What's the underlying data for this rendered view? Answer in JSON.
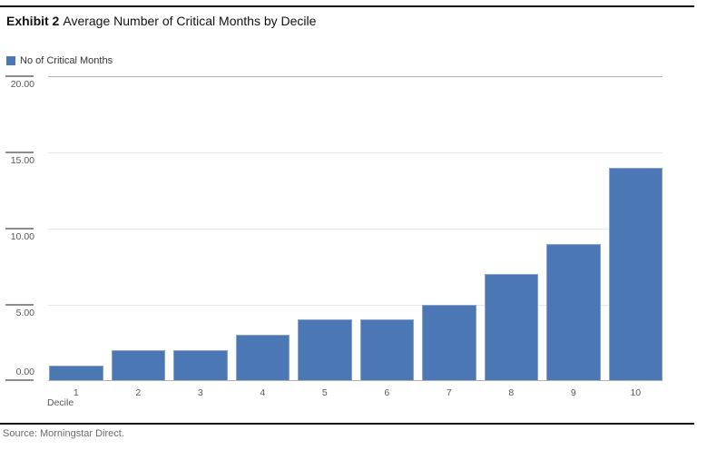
{
  "header": {
    "exhibit_label": "Exhibit 2",
    "title": "Average Number of Critical Months by Decile"
  },
  "legend": {
    "label": "No of Critical Months"
  },
  "chart_data": {
    "type": "bar",
    "title": "Average Number of Critical Months by Decile",
    "series_name": "No of Critical Months",
    "categories": [
      "1",
      "2",
      "3",
      "4",
      "5",
      "6",
      "7",
      "8",
      "9",
      "10"
    ],
    "values": [
      1.0,
      2.0,
      2.0,
      3.0,
      4.0,
      4.0,
      5.0,
      7.0,
      9.0,
      14.0
    ],
    "xlabel": "Decile",
    "ylabel": "",
    "ylim": [
      0,
      20
    ],
    "yticks": [
      20,
      15,
      10,
      5,
      0
    ],
    "ytick_labels": [
      "20.00",
      "15.00",
      "10.00",
      "5.00",
      "0.00"
    ],
    "grid": true,
    "legend_position": "top-left",
    "bar_color": "#4b77b5"
  },
  "footer": {
    "source": "Source: Morningstar Direct."
  }
}
